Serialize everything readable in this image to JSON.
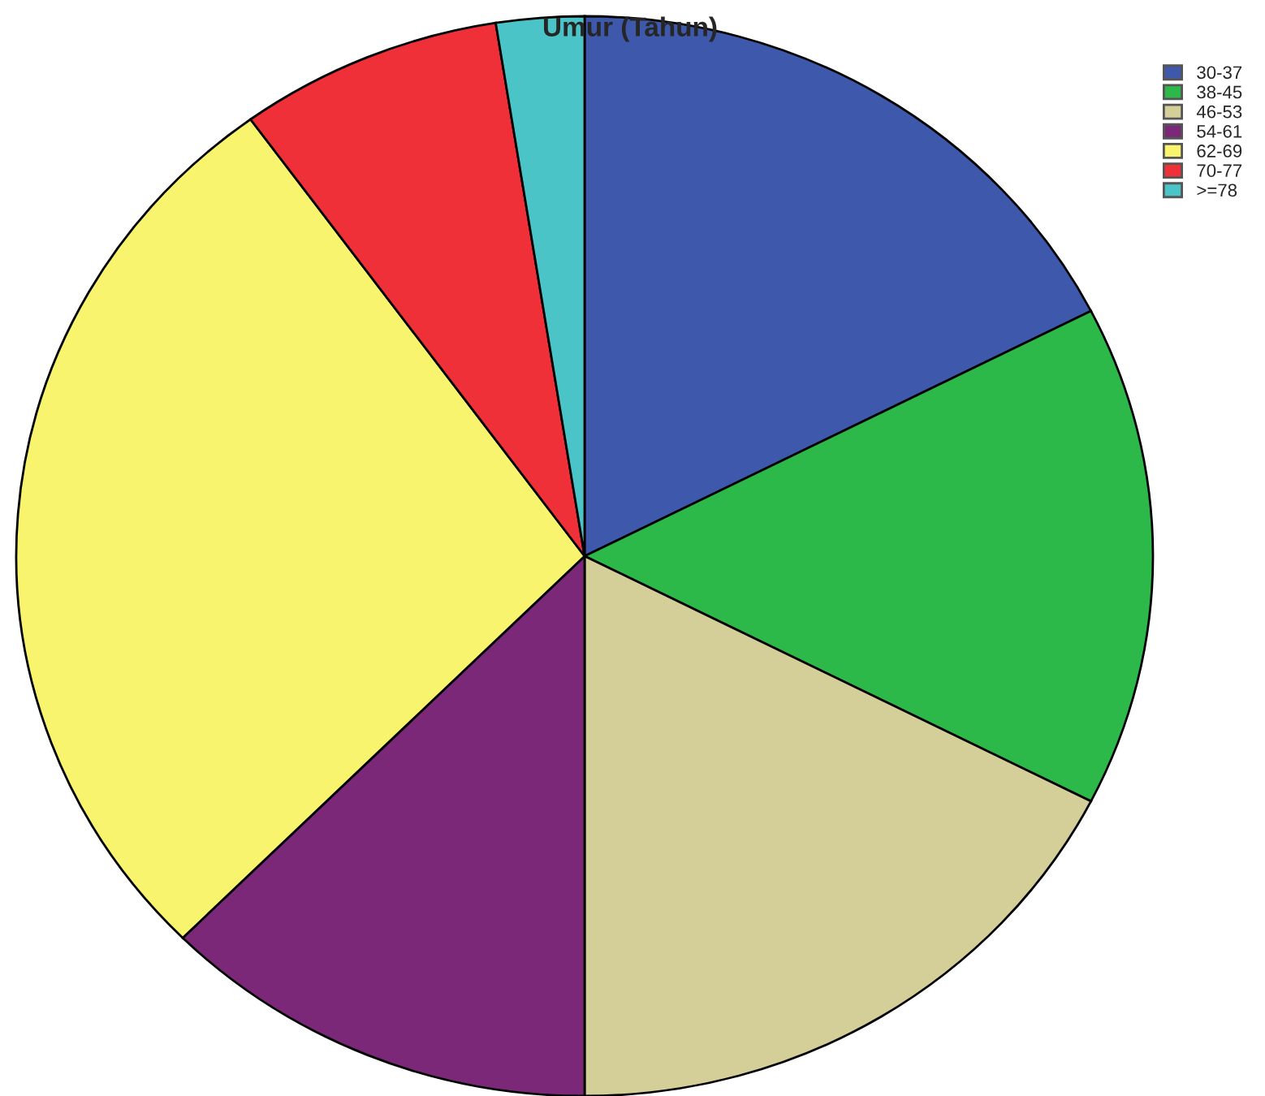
{
  "chart_data": {
    "type": "pie",
    "title": "Umur (Tahun)",
    "categories": [
      "30-37",
      "38-45",
      "46-53",
      "54-61",
      "62-69",
      "70-77",
      ">=78"
    ],
    "values": [
      17.5,
      15,
      17.5,
      12.5,
      27.5,
      7.5,
      2.5
    ],
    "colors": [
      "#3e58ac",
      "#2db84a",
      "#d4cf98",
      "#7b2878",
      "#f9f46e",
      "#ef3038",
      "#4bc4c8"
    ],
    "legend": "top right"
  }
}
